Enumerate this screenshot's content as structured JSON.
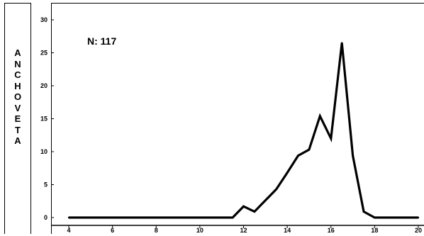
{
  "side_label": [
    "A",
    "N",
    "C",
    "H",
    "O",
    "V",
    "E",
    "T",
    "A"
  ],
  "chart_data": {
    "type": "line",
    "title": "",
    "xlabel": "",
    "ylabel": "",
    "annotation": "N: 117",
    "xlim": [
      4,
      20
    ],
    "ylim": [
      0,
      30
    ],
    "xticks": [
      4,
      6,
      8,
      10,
      12,
      14,
      16,
      18,
      20
    ],
    "yticks": [
      0,
      5,
      10,
      15,
      20,
      25,
      30
    ],
    "grid": false,
    "series": [
      {
        "x": [
          4,
          4.5,
          5,
          5.5,
          6,
          6.5,
          7,
          7.5,
          8,
          8.5,
          9,
          9.5,
          10,
          10.5,
          11,
          11.5,
          12,
          12.5,
          13,
          13.5,
          14,
          14.5,
          15,
          15.5,
          16,
          16.5,
          17,
          17.5,
          18,
          18.5,
          19,
          19.5,
          20
        ],
        "y": [
          0,
          0,
          0,
          0,
          0,
          0,
          0,
          0,
          0,
          0,
          0,
          0,
          0,
          0,
          0,
          0,
          1.7,
          0.9,
          2.6,
          4.3,
          6.8,
          9.4,
          10.3,
          15.4,
          12.0,
          26.5,
          9.4,
          0.9,
          0,
          0,
          0,
          0,
          0
        ]
      }
    ]
  }
}
